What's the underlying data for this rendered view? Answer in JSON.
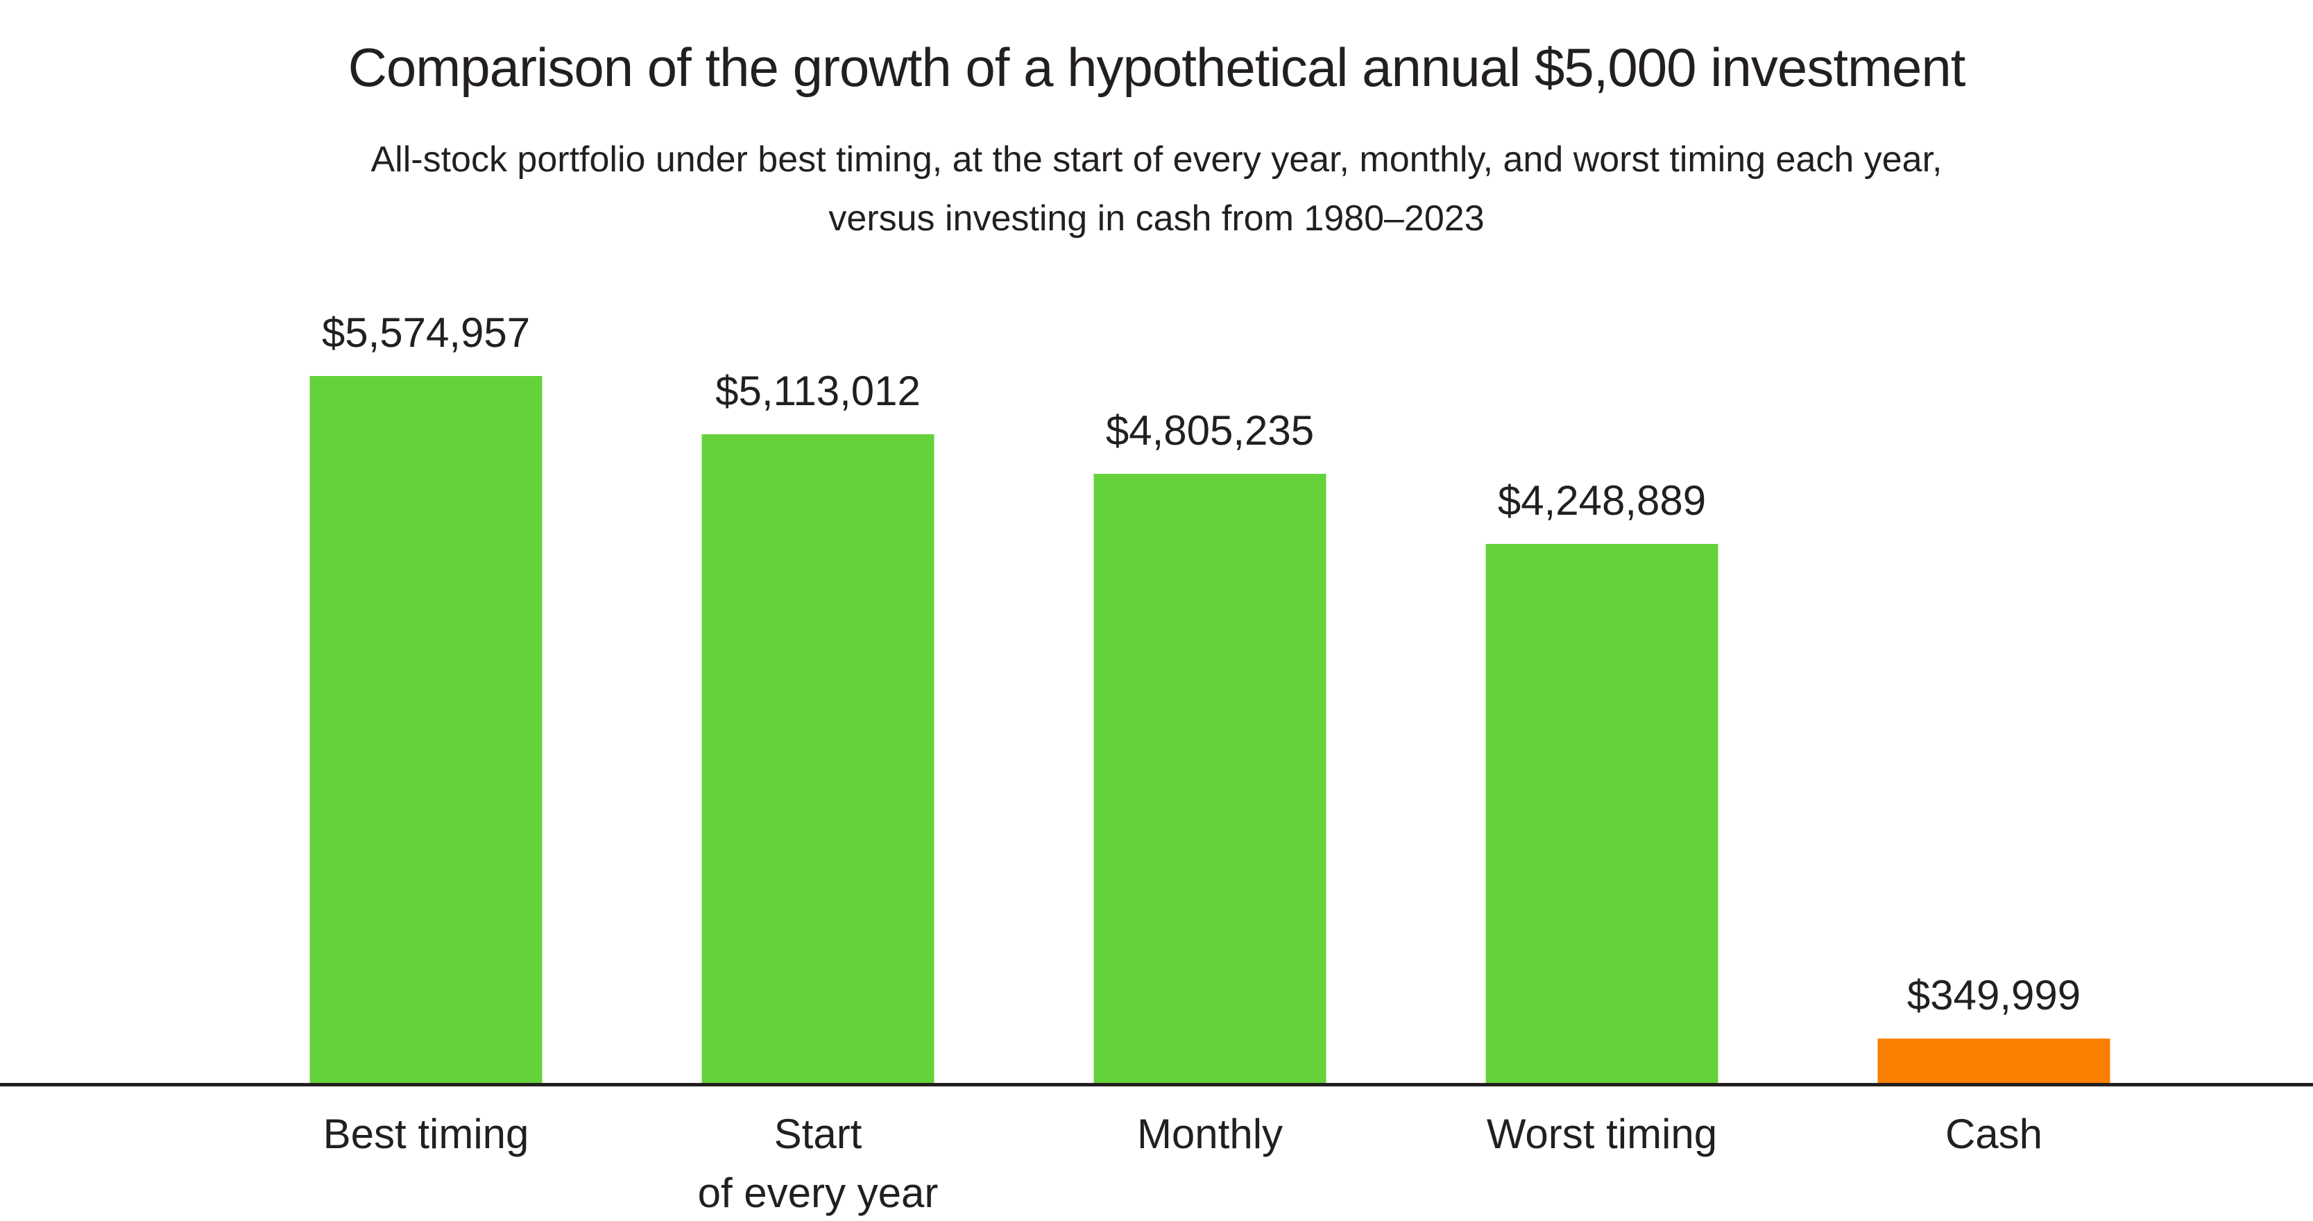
{
  "header": {
    "title": "Comparison of the growth of a hypothetical annual $5,000 investment",
    "subtitle_lines": [
      "All-stock portfolio under best timing, at the start of every year, monthly, and worst timing each year,",
      "versus investing in cash from 1980–2023"
    ]
  },
  "colors": {
    "stock_bar_green": "#65D23B",
    "cash_bar_orange": "#FA7E00",
    "text": "#231F20",
    "axis_line": "#231F20",
    "background": "#FFFFFF"
  },
  "chart_data": {
    "type": "bar",
    "orientation": "vertical",
    "title": "Comparison of the growth of a hypothetical annual $5,000 investment",
    "subtitle": "All-stock portfolio under best timing, at the start of every year, monthly, and worst timing each year, versus investing in cash from 1980–2023",
    "categories": [
      "Best timing",
      "Start\nof every year",
      "Monthly",
      "Worst timing",
      "Cash"
    ],
    "values": [
      5574957,
      5113012,
      4805235,
      4248889,
      349999
    ],
    "value_labels": [
      "$5,574,957",
      "$5,113,012",
      "$4,805,235",
      "$4,248,889",
      "$349,999"
    ],
    "bar_colors": [
      "#65D23B",
      "#65D23B",
      "#65D23B",
      "#65D23B",
      "#FA7E00"
    ],
    "xlabel": "",
    "ylabel": "",
    "ylim": [
      0,
      5574957
    ],
    "grid": false,
    "legend": false,
    "y_axis_ticks_visible": false
  }
}
